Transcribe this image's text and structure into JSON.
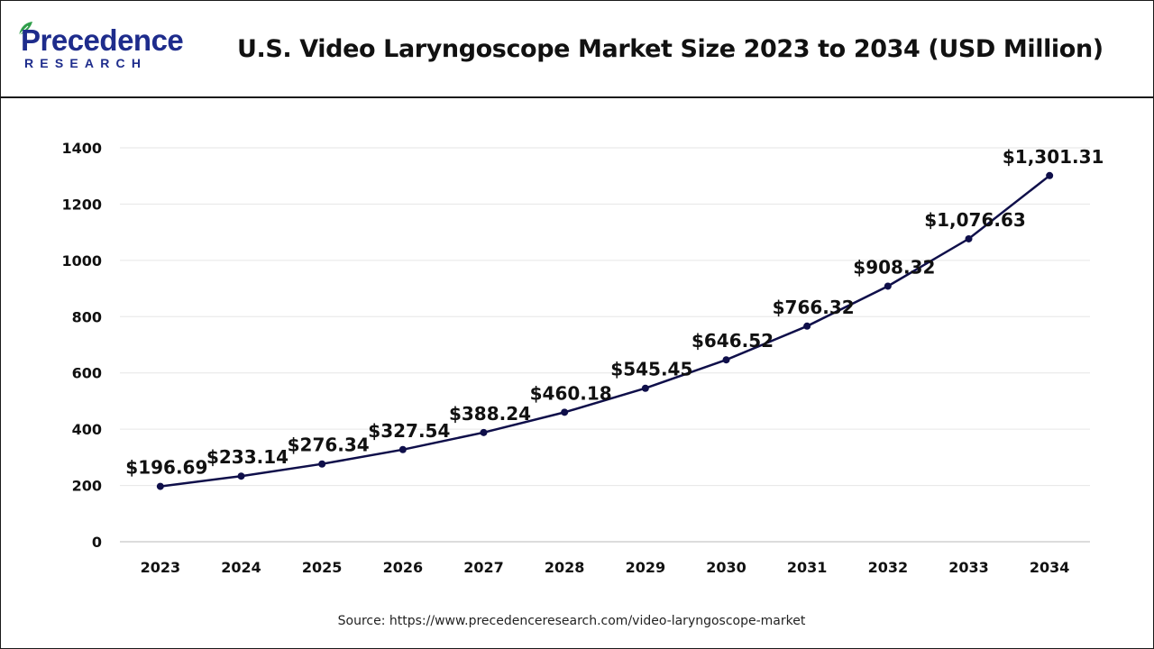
{
  "brand": {
    "name_main": "Precedence",
    "name_sub": "RESEARCH"
  },
  "source_text": "Source: https://www.precedenceresearch.com/video-laryngoscope-market",
  "colors": {
    "line": "#0f0f4a",
    "brand": "#1e2c8c",
    "grid": "#e6e6e6"
  },
  "chart_data": {
    "type": "line",
    "title": "U.S. Video Laryngoscope Market Size 2023 to 2034 (USD Million)",
    "xlabel": "",
    "ylabel": "",
    "x": [
      "2023",
      "2024",
      "2025",
      "2026",
      "2027",
      "2028",
      "2029",
      "2030",
      "2031",
      "2032",
      "2033",
      "2034"
    ],
    "series": [
      {
        "values": [
          196.69,
          233.14,
          276.34,
          327.54,
          388.24,
          460.18,
          545.45,
          646.52,
          766.32,
          908.32,
          1076.63,
          1301.31
        ],
        "labels": [
          "$196.69",
          "$233.14",
          "$276.34",
          "$327.54",
          "$388.24",
          "$460.18",
          "$545.45",
          "$646.52",
          "$766.32",
          "$908.32",
          "$1,076.63",
          "$1,301.31"
        ]
      }
    ],
    "ylim": [
      0,
      1400
    ],
    "yticks": [
      0,
      200,
      400,
      600,
      800,
      1000,
      1200,
      1400
    ],
    "grid": true,
    "legend": "none"
  }
}
